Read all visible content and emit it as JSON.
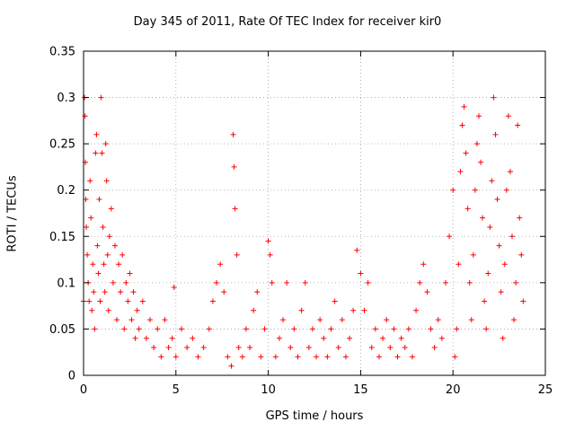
{
  "chart_data": {
    "type": "scatter",
    "title": "Day 345 of 2011, Rate Of TEC Index for receiver kir0",
    "xlabel": "GPS time / hours",
    "ylabel": "ROTI / TECUs",
    "xlim": [
      0,
      25
    ],
    "ylim": [
      0,
      0.35
    ],
    "xticks": [
      "0",
      "5",
      "10",
      "15",
      "20",
      "25"
    ],
    "yticks": [
      "0",
      "0.05",
      "0.1",
      "0.15",
      "0.2",
      "0.25",
      "0.3",
      "0.35"
    ],
    "grid": true,
    "marker": "+",
    "color": "#ff0000",
    "series": [
      {
        "points": [
          [
            0.0,
            0.08
          ],
          [
            0.05,
            0.3
          ],
          [
            0.08,
            0.28
          ],
          [
            0.1,
            0.23
          ],
          [
            0.12,
            0.19
          ],
          [
            0.15,
            0.16
          ],
          [
            0.2,
            0.13
          ],
          [
            0.25,
            0.1
          ],
          [
            0.3,
            0.08
          ],
          [
            0.35,
            0.21
          ],
          [
            0.4,
            0.17
          ],
          [
            0.45,
            0.07
          ],
          [
            0.5,
            0.12
          ],
          [
            0.55,
            0.09
          ],
          [
            0.6,
            0.05
          ],
          [
            0.65,
            0.24
          ],
          [
            0.7,
            0.26
          ],
          [
            0.75,
            0.14
          ],
          [
            0.8,
            0.11
          ],
          [
            0.85,
            0.19
          ],
          [
            0.9,
            0.08
          ],
          [
            0.95,
            0.3
          ],
          [
            1.0,
            0.24
          ],
          [
            1.05,
            0.16
          ],
          [
            1.1,
            0.12
          ],
          [
            1.15,
            0.09
          ],
          [
            1.2,
            0.25
          ],
          [
            1.25,
            0.21
          ],
          [
            1.3,
            0.13
          ],
          [
            1.35,
            0.07
          ],
          [
            1.4,
            0.15
          ],
          [
            1.5,
            0.18
          ],
          [
            1.6,
            0.1
          ],
          [
            1.7,
            0.14
          ],
          [
            1.8,
            0.06
          ],
          [
            1.9,
            0.12
          ],
          [
            2.0,
            0.09
          ],
          [
            2.1,
            0.13
          ],
          [
            2.2,
            0.05
          ],
          [
            2.3,
            0.1
          ],
          [
            2.4,
            0.08
          ],
          [
            2.5,
            0.11
          ],
          [
            2.6,
            0.06
          ],
          [
            2.7,
            0.09
          ],
          [
            2.8,
            0.04
          ],
          [
            2.9,
            0.07
          ],
          [
            3.0,
            0.05
          ],
          [
            3.2,
            0.08
          ],
          [
            3.4,
            0.04
          ],
          [
            3.6,
            0.06
          ],
          [
            3.8,
            0.03
          ],
          [
            4.0,
            0.05
          ],
          [
            4.2,
            0.02
          ],
          [
            4.4,
            0.06
          ],
          [
            4.6,
            0.03
          ],
          [
            4.8,
            0.04
          ],
          [
            4.9,
            0.095
          ],
          [
            5.0,
            0.02
          ],
          [
            5.3,
            0.05
          ],
          [
            5.6,
            0.03
          ],
          [
            5.9,
            0.04
          ],
          [
            6.2,
            0.02
          ],
          [
            6.5,
            0.03
          ],
          [
            6.8,
            0.05
          ],
          [
            7.0,
            0.08
          ],
          [
            7.2,
            0.1
          ],
          [
            7.4,
            0.12
          ],
          [
            7.6,
            0.09
          ],
          [
            7.8,
            0.02
          ],
          [
            8.0,
            0.01
          ],
          [
            8.1,
            0.26
          ],
          [
            8.15,
            0.225
          ],
          [
            8.2,
            0.18
          ],
          [
            8.3,
            0.13
          ],
          [
            8.4,
            0.03
          ],
          [
            8.6,
            0.02
          ],
          [
            8.8,
            0.05
          ],
          [
            9.0,
            0.03
          ],
          [
            9.2,
            0.07
          ],
          [
            9.4,
            0.09
          ],
          [
            9.6,
            0.02
          ],
          [
            9.8,
            0.05
          ],
          [
            10.0,
            0.145
          ],
          [
            10.1,
            0.13
          ],
          [
            10.2,
            0.1
          ],
          [
            10.4,
            0.02
          ],
          [
            10.6,
            0.04
          ],
          [
            10.8,
            0.06
          ],
          [
            11.0,
            0.1
          ],
          [
            11.2,
            0.03
          ],
          [
            11.4,
            0.05
          ],
          [
            11.6,
            0.02
          ],
          [
            11.8,
            0.07
          ],
          [
            12.0,
            0.1
          ],
          [
            12.2,
            0.03
          ],
          [
            12.4,
            0.05
          ],
          [
            12.6,
            0.02
          ],
          [
            12.8,
            0.06
          ],
          [
            13.0,
            0.04
          ],
          [
            13.2,
            0.02
          ],
          [
            13.4,
            0.05
          ],
          [
            13.6,
            0.08
          ],
          [
            13.8,
            0.03
          ],
          [
            14.0,
            0.06
          ],
          [
            14.2,
            0.02
          ],
          [
            14.4,
            0.04
          ],
          [
            14.6,
            0.07
          ],
          [
            14.8,
            0.135
          ],
          [
            15.0,
            0.11
          ],
          [
            15.2,
            0.07
          ],
          [
            15.4,
            0.1
          ],
          [
            15.6,
            0.03
          ],
          [
            15.8,
            0.05
          ],
          [
            16.0,
            0.02
          ],
          [
            16.2,
            0.04
          ],
          [
            16.4,
            0.06
          ],
          [
            16.6,
            0.03
          ],
          [
            16.8,
            0.05
          ],
          [
            17.0,
            0.02
          ],
          [
            17.2,
            0.04
          ],
          [
            17.4,
            0.03
          ],
          [
            17.6,
            0.05
          ],
          [
            17.8,
            0.02
          ],
          [
            18.0,
            0.07
          ],
          [
            18.2,
            0.1
          ],
          [
            18.4,
            0.12
          ],
          [
            18.6,
            0.09
          ],
          [
            18.8,
            0.05
          ],
          [
            19.0,
            0.03
          ],
          [
            19.2,
            0.06
          ],
          [
            19.4,
            0.04
          ],
          [
            19.6,
            0.1
          ],
          [
            19.8,
            0.15
          ],
          [
            20.0,
            0.2
          ],
          [
            20.1,
            0.02
          ],
          [
            20.2,
            0.05
          ],
          [
            20.3,
            0.12
          ],
          [
            20.4,
            0.22
          ],
          [
            20.5,
            0.27
          ],
          [
            20.6,
            0.29
          ],
          [
            20.7,
            0.24
          ],
          [
            20.8,
            0.18
          ],
          [
            20.9,
            0.1
          ],
          [
            21.0,
            0.06
          ],
          [
            21.1,
            0.13
          ],
          [
            21.2,
            0.2
          ],
          [
            21.3,
            0.25
          ],
          [
            21.4,
            0.28
          ],
          [
            21.5,
            0.23
          ],
          [
            21.6,
            0.17
          ],
          [
            21.7,
            0.08
          ],
          [
            21.8,
            0.05
          ],
          [
            21.9,
            0.11
          ],
          [
            22.0,
            0.16
          ],
          [
            22.1,
            0.21
          ],
          [
            22.2,
            0.3
          ],
          [
            22.3,
            0.26
          ],
          [
            22.4,
            0.19
          ],
          [
            22.5,
            0.14
          ],
          [
            22.6,
            0.09
          ],
          [
            22.7,
            0.04
          ],
          [
            22.8,
            0.12
          ],
          [
            22.9,
            0.2
          ],
          [
            23.0,
            0.28
          ],
          [
            23.1,
            0.22
          ],
          [
            23.2,
            0.15
          ],
          [
            23.3,
            0.06
          ],
          [
            23.4,
            0.1
          ],
          [
            23.5,
            0.27
          ],
          [
            23.6,
            0.17
          ],
          [
            23.7,
            0.13
          ],
          [
            23.8,
            0.08
          ]
        ]
      }
    ]
  }
}
